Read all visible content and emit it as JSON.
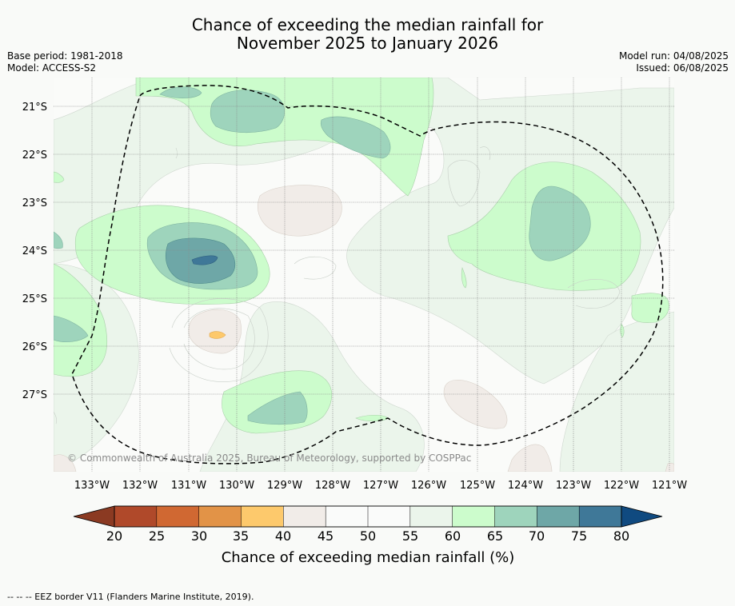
{
  "title": {
    "line1": "Chance of exceeding the median rainfall for",
    "line2": "November 2025 to January 2026"
  },
  "meta": {
    "base_period": "Base period: 1981-2018",
    "model": "Model: ACCESS-S2",
    "model_run": "Model run: 04/08/2025",
    "issued": "Issued: 06/08/2025"
  },
  "map": {
    "lat_labels": [
      "21°S",
      "22°S",
      "23°S",
      "24°S",
      "25°S",
      "26°S",
      "27°S"
    ],
    "lon_labels": [
      "133°W",
      "132°W",
      "131°W",
      "130°W",
      "129°W",
      "128°W",
      "127°W",
      "126°W",
      "125°W",
      "124°W",
      "123°W",
      "122°W",
      "121°W"
    ],
    "credit": "© Commonwealth of Australia 2025, Bureau of Meteorology, supported by COSPPac",
    "background_color": "#fafbf9"
  },
  "colorbar": {
    "ticks": [
      "20",
      "25",
      "30",
      "35",
      "40",
      "45",
      "50",
      "55",
      "60",
      "65",
      "70",
      "75",
      "80"
    ],
    "colors": [
      "#b0492a",
      "#d06832",
      "#e29347",
      "#fdc96c",
      "#f1ece8",
      "#fafbfa",
      "#fafbfa",
      "#ebf5eb",
      "#ccfccc",
      "#9ed4bc",
      "#6ea7a7",
      "#3f7898"
    ],
    "under_color": "#8b3a22",
    "over_color": "#104a80",
    "label": "Chance of exceeding median rainfall (%)"
  },
  "footer": {
    "legend_text": "--  --  -- EEZ border V11 (Flanders Marine Institute, 2019)."
  }
}
